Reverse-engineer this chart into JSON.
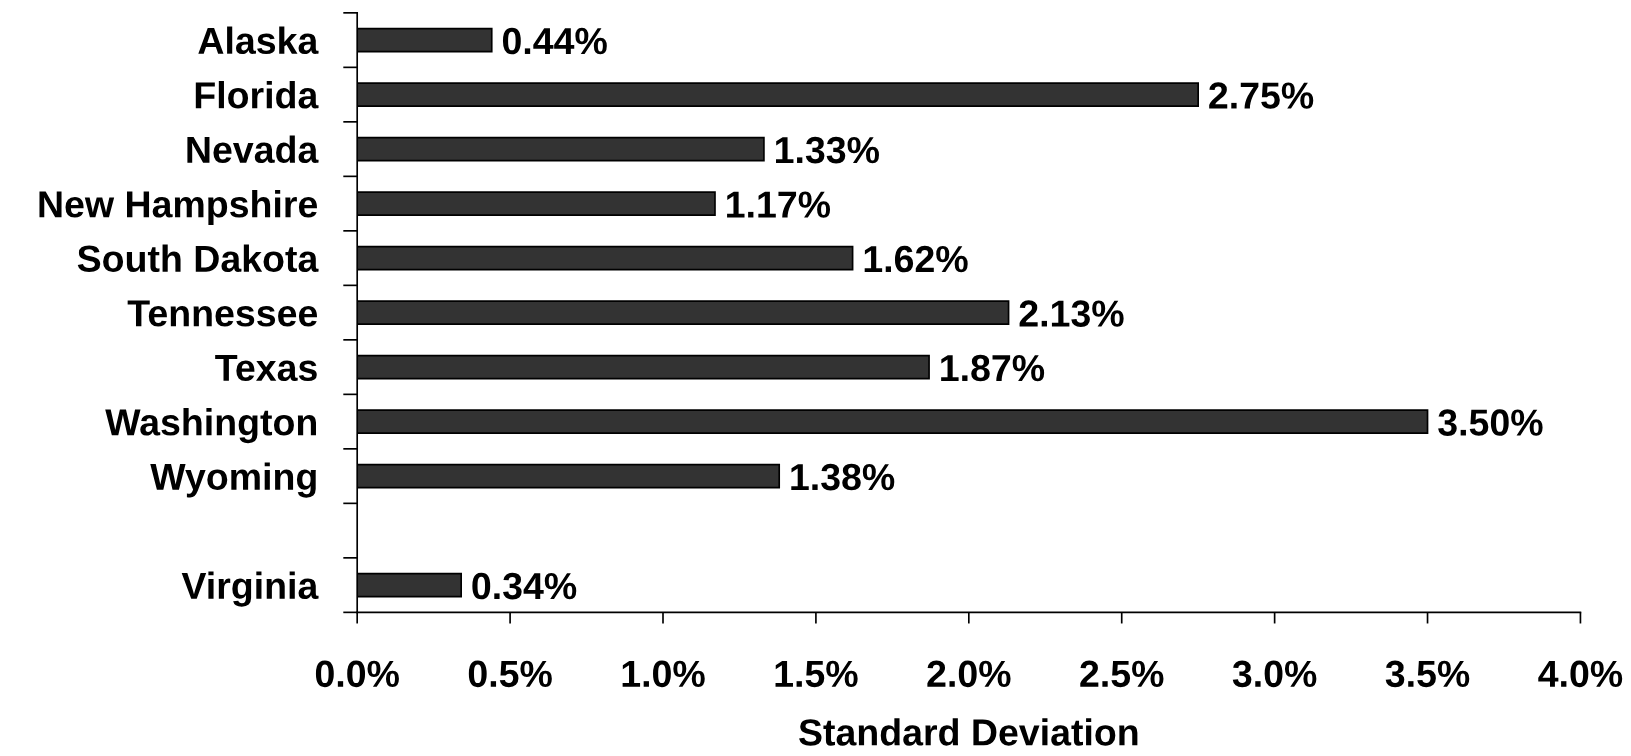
{
  "chart_data": {
    "type": "bar",
    "orientation": "horizontal",
    "xlabel": "Standard Deviation",
    "categories": [
      "Alaska",
      "Florida",
      "Nevada",
      "New Hampshire",
      "South Dakota",
      "Tennessee",
      "Texas",
      "Washington",
      "Wyoming",
      null,
      "Virginia"
    ],
    "values": [
      0.44,
      2.75,
      1.33,
      1.17,
      1.62,
      2.13,
      1.87,
      3.5,
      1.38,
      null,
      0.34
    ],
    "value_labels": [
      "0.44%",
      "2.75%",
      "1.33%",
      "1.17%",
      "1.62%",
      "2.13%",
      "1.87%",
      "3.50%",
      "1.38%",
      null,
      "0.34%"
    ],
    "color": "#333333",
    "xlim": [
      0,
      4
    ],
    "xticks": [
      {
        "value": 0,
        "label": "0.0%"
      },
      {
        "value": 0.5,
        "label": "0.5%"
      },
      {
        "value": 1,
        "label": "1.0%"
      },
      {
        "value": 1.5,
        "label": "1.5%"
      },
      {
        "value": 2,
        "label": "2.0%"
      },
      {
        "value": 2.5,
        "label": "2.5%"
      },
      {
        "value": 3,
        "label": "3.0%"
      },
      {
        "value": 3.5,
        "label": "3.5%"
      },
      {
        "value": 4,
        "label": "4.0%"
      }
    ]
  }
}
